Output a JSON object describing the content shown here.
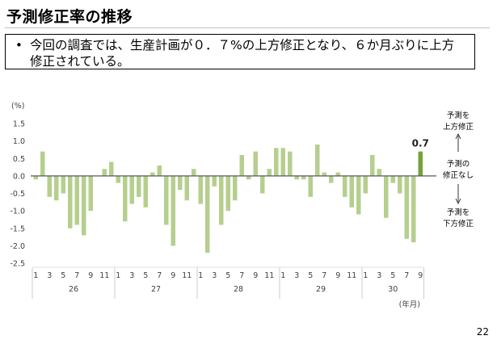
{
  "header": {
    "title": "予測修正率の推移",
    "bullet": "今回の調査では、生産計画が０．７%の上方修正となり、６か月ぶりに上方修正されている。"
  },
  "page_number": "22",
  "colors": {
    "bar": "#b5cf8e",
    "bar_highlight": "#76a13b",
    "zero_line": "#595959"
  },
  "chart_data": {
    "type": "bar",
    "ylabel": "(%)",
    "xlabel": "(年月)",
    "ylim": [
      -2.5,
      1.5
    ],
    "yticks": [
      "1.5",
      "1.0",
      "0.5",
      "0.0",
      "-0.5",
      "-1.0",
      "-1.5",
      "-2.0",
      "-2.5"
    ],
    "years": [
      {
        "label": "26",
        "months": [
          "1",
          "",
          "3",
          "",
          "5",
          "",
          "7",
          "",
          "9",
          "",
          "11",
          ""
        ]
      },
      {
        "label": "27",
        "months": [
          "1",
          "",
          "3",
          "",
          "5",
          "",
          "7",
          "",
          "9",
          "",
          "11",
          ""
        ]
      },
      {
        "label": "28",
        "months": [
          "1",
          "",
          "3",
          "",
          "5",
          "",
          "7",
          "",
          "9",
          "",
          "11",
          ""
        ]
      },
      {
        "label": "29",
        "months": [
          "1",
          "",
          "3",
          "",
          "5",
          "",
          "7",
          "",
          "9",
          "",
          "11",
          ""
        ]
      },
      {
        "label": "30",
        "months": [
          "1",
          "",
          "3",
          "",
          "5",
          "",
          "7",
          "",
          "9"
        ]
      }
    ],
    "values": [
      -0.1,
      0.7,
      -0.6,
      -0.7,
      -0.5,
      -1.5,
      -1.4,
      -1.7,
      -1.0,
      0.0,
      0.2,
      0.4,
      -0.2,
      -1.3,
      -0.8,
      -0.6,
      -0.9,
      0.1,
      0.3,
      -1.4,
      -2.0,
      -0.4,
      -0.7,
      0.2,
      -0.8,
      -2.2,
      -0.3,
      -1.4,
      -1.0,
      -0.7,
      0.6,
      -0.1,
      0.7,
      -0.5,
      0.2,
      0.8,
      0.8,
      0.7,
      -0.1,
      -0.1,
      -0.6,
      0.9,
      0.1,
      -0.2,
      0.1,
      -0.6,
      -0.9,
      -1.1,
      -0.5,
      0.6,
      0.2,
      -1.2,
      -0.2,
      -0.5,
      -1.8,
      -1.9,
      0.7
    ],
    "highlight_last": true,
    "last_value_label": "0.7",
    "annotations": {
      "up": [
        "予測を",
        "上方修正"
      ],
      "mid": [
        "予測の",
        "修正なし"
      ],
      "down": [
        "予測を",
        "下方修正"
      ]
    },
    "grid": false
  }
}
